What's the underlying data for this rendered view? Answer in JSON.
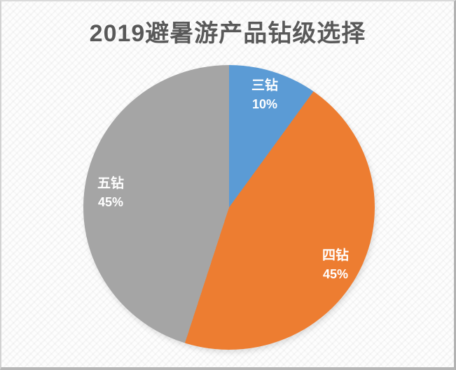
{
  "chart": {
    "title_color": "#595959",
    "label_color": "#FFFFFF"
  },
  "chart_data": {
    "type": "pie",
    "title": "2019避暑游产品钻级选择",
    "categories": [
      "三钻",
      "四钻",
      "五钻"
    ],
    "values": [
      10,
      45,
      45
    ],
    "unit": "percent",
    "start_angle_deg": 0,
    "direction": "clockwise",
    "legend_position": "none",
    "labels_on_slices": true,
    "slices": [
      {
        "label": "三钻",
        "value": 10,
        "pct_label": "10%",
        "color": "#5B9BD5"
      },
      {
        "label": "四钻",
        "value": 45,
        "pct_label": "45%",
        "color": "#ED7D31"
      },
      {
        "label": "五钻",
        "value": 45,
        "pct_label": "45%",
        "color": "#A5A5A5"
      }
    ]
  }
}
